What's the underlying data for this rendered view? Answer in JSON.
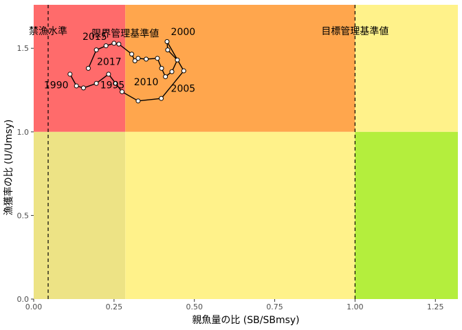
{
  "chart_data": {
    "type": "scatter",
    "xlabel": "親魚量の比 (SB/SBmsy)",
    "ylabel": "漁獲率の比 (U/Umsy)",
    "xlim": [
      0,
      1.32
    ],
    "ylim": [
      0,
      1.76
    ],
    "x_ticks": [
      "0.00",
      "0.25",
      "0.50",
      "0.75",
      "1.00",
      "1.25"
    ],
    "y_ticks": [
      "0.0",
      "0.5",
      "1.0",
      "1.5"
    ],
    "grid": false,
    "zones": [
      {
        "x": [
          0,
          0.285
        ],
        "y": [
          1.0,
          1.76
        ],
        "color": "#ff6b6b"
      },
      {
        "x": [
          0.285,
          1.0
        ],
        "y": [
          1.0,
          1.76
        ],
        "color": "#ffa64d"
      },
      {
        "x": [
          1.0,
          1.32
        ],
        "y": [
          1.0,
          1.76
        ],
        "color": "#fff28a"
      },
      {
        "x": [
          0,
          0.285
        ],
        "y": [
          0,
          1.0
        ],
        "color": "#ede385"
      },
      {
        "x": [
          0.285,
          1.0
        ],
        "y": [
          0,
          1.0
        ],
        "color": "#fff28a"
      },
      {
        "x": [
          1.0,
          1.32
        ],
        "y": [
          0,
          1.0
        ],
        "color": "#b4ee3d"
      }
    ],
    "reference_lines": [
      {
        "x": 0.045,
        "label": "禁漁水準"
      },
      {
        "x": 1.0,
        "label": "目標管理基準値"
      }
    ],
    "zone_labels": [
      {
        "x": 0.285,
        "y": 1.59,
        "text": "限界管理基準値"
      }
    ],
    "series": [
      {
        "points": [
          {
            "year": 1990,
            "x": 0.113,
            "y": 1.345
          },
          {
            "year": 1991,
            "x": 0.133,
            "y": 1.275
          },
          {
            "year": 1992,
            "x": 0.155,
            "y": 1.263
          },
          {
            "year": 1993,
            "x": 0.195,
            "y": 1.29
          },
          {
            "year": 1994,
            "x": 0.233,
            "y": 1.345
          },
          {
            "year": 1995,
            "x": 0.255,
            "y": 1.29
          },
          {
            "year": 1996,
            "x": 0.275,
            "y": 1.24
          },
          {
            "year": 1997,
            "x": 0.325,
            "y": 1.185
          },
          {
            "year": 1998,
            "x": 0.397,
            "y": 1.2
          },
          {
            "year": 1999,
            "x": 0.467,
            "y": 1.365
          },
          {
            "year": 2000,
            "x": 0.415,
            "y": 1.54
          },
          {
            "year": 2001,
            "x": 0.417,
            "y": 1.49
          },
          {
            "year": 2002,
            "x": 0.447,
            "y": 1.43
          },
          {
            "year": 2003,
            "x": 0.43,
            "y": 1.36
          },
          {
            "year": 2004,
            "x": 0.41,
            "y": 1.33
          },
          {
            "year": 2005,
            "x": 0.398,
            "y": 1.38
          },
          {
            "year": 2006,
            "x": 0.385,
            "y": 1.44
          },
          {
            "year": 2007,
            "x": 0.35,
            "y": 1.435
          },
          {
            "year": 2008,
            "x": 0.325,
            "y": 1.44
          },
          {
            "year": 2009,
            "x": 0.315,
            "y": 1.425
          },
          {
            "year": 2010,
            "x": 0.305,
            "y": 1.465
          },
          {
            "year": 2011,
            "x": 0.265,
            "y": 1.525
          },
          {
            "year": 2012,
            "x": 0.25,
            "y": 1.53
          },
          {
            "year": 2013,
            "x": 0.225,
            "y": 1.515
          },
          {
            "year": 2014,
            "x": 0.195,
            "y": 1.49
          },
          {
            "year": 2015,
            "x": 0.17,
            "y": 1.38
          }
        ]
      }
    ],
    "point_labels": [
      {
        "text": "1990",
        "x": 0.07,
        "y": 1.28
      },
      {
        "text": "1995",
        "x": 0.245,
        "y": 1.28
      },
      {
        "text": "2000",
        "x": 0.465,
        "y": 1.6
      },
      {
        "text": "2005",
        "x": 0.465,
        "y": 1.26
      },
      {
        "text": "2010",
        "x": 0.35,
        "y": 1.3
      },
      {
        "text": "2015",
        "x": 0.19,
        "y": 1.57
      },
      {
        "text": "2017",
        "x": 0.235,
        "y": 1.42
      }
    ]
  }
}
